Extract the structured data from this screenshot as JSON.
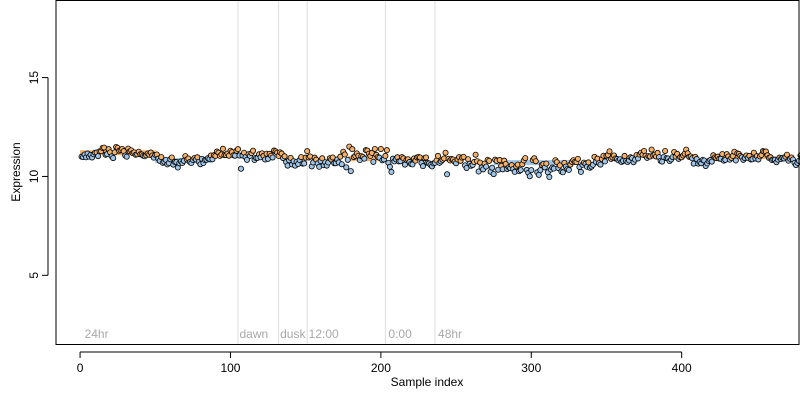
{
  "chart_data": {
    "type": "scatter",
    "xlabel": "Sample index",
    "ylabel": "Expression",
    "xlim": [
      -16,
      478
    ],
    "ylim": [
      1.5,
      18.9
    ],
    "x_ticks": [
      0,
      100,
      200,
      300,
      400
    ],
    "y_ticks": [
      5,
      10,
      15
    ],
    "grid": false,
    "n_samples": 461,
    "colors": {
      "high": "#f6b26b",
      "low": "#9fc5e8",
      "edge": "#000000",
      "vline": "#dddddd",
      "annotation": "#a8a8a8"
    },
    "annotations": [
      {
        "label": "24hr",
        "x": 3
      },
      {
        "label": "dawn",
        "x": 106
      },
      {
        "label": "dusk",
        "x": 133
      },
      {
        "label": "12:00",
        "x": 152
      },
      {
        "label": "0:00",
        "x": 205
      },
      {
        "label": "48hr",
        "x": 238
      }
    ],
    "vlines": [
      105,
      132,
      151,
      203,
      236
    ],
    "trend_segments": [
      {
        "x0": 0,
        "x1": 50,
        "y": 11.2,
        "level": "high"
      },
      {
        "x0": 50,
        "x1": 88,
        "y": 10.8,
        "level": "low"
      },
      {
        "x0": 88,
        "x1": 100,
        "y": 11.1,
        "level": "high"
      },
      {
        "x0": 178,
        "x1": 200,
        "y": 10.9,
        "level": "high"
      },
      {
        "x0": 275,
        "x1": 325,
        "y": 10.7,
        "level": "low"
      },
      {
        "x0": 420,
        "x1": 460,
        "y": 11.0,
        "level": "high"
      }
    ],
    "y_values": [
      11.0,
      10.98,
      11.11,
      10.97,
      11.16,
      11.0,
      11.09,
      10.96,
      11.12,
      11.2,
      11.21,
      11.03,
      11.27,
      11.28,
      11.44,
      11.46,
      11.1,
      11.13,
      11.38,
      11.22,
      11.02,
      10.93,
      11.22,
      11.49,
      11.44,
      11.3,
      11.34,
      11.39,
      11.28,
      11.06,
      11.0,
      11.41,
      11.27,
      11.32,
      11.18,
      11.22,
      11.1,
      11.12,
      11.25,
      11.12,
      11.11,
      11.05,
      11.02,
      11.07,
      11.16,
      11.1,
      11.21,
      11.06,
      10.95,
      11.09,
      11.11,
      10.9,
      10.79,
      10.98,
      10.69,
      10.74,
      10.84,
      10.61,
      10.68,
      10.87,
      10.96,
      10.6,
      10.74,
      10.73,
      10.45,
      10.67,
      10.76,
      10.68,
      10.79,
      11.03,
      10.86,
      10.91,
      10.73,
      10.68,
      10.84,
      10.93,
      10.86,
      10.97,
      10.74,
      10.62,
      10.89,
      10.68,
      10.83,
      10.85,
      10.93,
      10.89,
      11.06,
      10.87,
      11.07,
      11.04,
      11.26,
      11.2,
      11.04,
      11.11,
      11.4,
      11.08,
      11.08,
      11.16,
      11.05,
      11.3,
      11.23,
      11.07,
      11.05,
      11.3,
      11.38,
      11.06,
      10.39,
      11.06,
      11.2,
      10.98,
      10.84,
      11.12,
      11.04,
      11.18,
      11.3,
      10.83,
      10.94,
      10.94,
      11.12,
      10.97,
      11.17,
      11.04,
      10.86,
      11.15,
      10.89,
      11.14,
      11.05,
      10.96,
      11.31,
      11.27,
      11.2,
      11.04,
      11.22,
      11.16,
      10.93,
      11.02,
      10.73,
      10.55,
      10.82,
      10.94,
      10.61,
      10.77,
      10.55,
      10.74,
      10.63,
      10.83,
      10.98,
      10.65,
      10.66,
      10.95,
      11.28,
      10.96,
      11.01,
      10.51,
      10.71,
      10.95,
      10.85,
      10.66,
      10.49,
      10.78,
      10.92,
      10.57,
      10.72,
      10.55,
      10.71,
      10.92,
      10.86,
      10.96,
      10.67,
      10.67,
      10.86,
      10.71,
      11.0,
      10.62,
      11.25,
      11.11,
      10.46,
      10.84,
      11.51,
      10.27,
      11.38,
      10.98,
      11.04,
      11.17,
      11.05,
      10.83,
      11.03,
      10.99,
      10.9,
      11.33,
      11.31,
      11.15,
      11.04,
      11.19,
      10.74,
      11.39,
      11.09,
      10.98,
      10.95,
      11.39,
      10.82,
      10.86,
      11.04,
      11.33,
      10.69,
      10.49,
      10.23,
      10.9,
      10.76,
      10.87,
      10.97,
      10.76,
      10.77,
      10.98,
      10.92,
      10.6,
      10.84,
      10.87,
      10.73,
      10.63,
      10.61,
      10.91,
      10.8,
      10.96,
      10.99,
      10.96,
      10.68,
      10.52,
      10.93,
      10.96,
      10.69,
      10.66,
      10.58,
      10.51,
      10.66,
      10.69,
      10.81,
      11.04,
      10.69,
      10.76,
      10.84,
      10.91,
      11.2,
      10.11,
      10.89,
      10.81,
      10.88,
      10.86,
      10.75,
      10.67,
      10.86,
      10.98,
      10.79,
      10.95,
      10.99,
      10.56,
      10.43,
      10.87,
      10.64,
      10.54,
      10.58,
      10.73,
      11.1,
      10.77,
      10.25,
      10.7,
      10.45,
      10.36,
      10.65,
      10.5,
      10.84,
      10.79,
      10.24,
      10.44,
      10.12,
      10.85,
      10.79,
      10.34,
      10.83,
      10.54,
      10.36,
      10.8,
      10.63,
      10.38,
      10.46,
      10.42,
      10.57,
      10.38,
      10.23,
      10.51,
      10.6,
      10.27,
      10.32,
      10.62,
      10.81,
      10.93,
      10.33,
      10.18,
      10.01,
      10.32,
      10.83,
      10.92,
      10.77,
      10.21,
      10.08,
      10.32,
      10.58,
      10.63,
      10.46,
      10.65,
      10.21,
      9.97,
      10.35,
      10.45,
      10.4,
      10.82,
      10.72,
      10.43,
      10.56,
      10.25,
      10.21,
      10.69,
      10.5,
      10.38,
      10.33,
      10.6,
      10.74,
      10.82,
      10.74,
      10.73,
      10.89,
      10.48,
      10.23,
      10.59,
      10.7,
      10.64,
      10.49,
      10.71,
      10.44,
      10.5,
      10.59,
      10.99,
      10.74,
      10.9,
      10.67,
      10.6,
      10.88,
      11.05,
      10.76,
      11.05,
      11.09,
      11.27,
      10.89,
      10.96,
      11.06,
      10.91,
      10.88,
      10.81,
      10.87,
      10.73,
      10.79,
      11.04,
      10.79,
      10.73,
      10.81,
      10.97,
      10.93,
      10.72,
      10.85,
      11.08,
      10.91,
      11.11,
      11.2,
      11.1,
      11.29,
      11.05,
      10.94,
      11.03,
      11.01,
      11.36,
      11.06,
      11.1,
      11.01,
      11.19,
      10.98,
      10.79,
      10.75,
      10.98,
      11.29,
      10.92,
      10.91,
      10.78,
      10.86,
      10.98,
      11.24,
      11.0,
      11.14,
      10.89,
      10.98,
      10.97,
      11.06,
      11.15,
      11.36,
      11.17,
      10.99,
      11.01,
      10.92,
      10.65,
      10.99,
      10.88,
      10.65,
      10.73,
      10.67,
      10.84,
      10.81,
      10.53,
      10.66,
      10.78,
      10.83,
      10.75,
      11.07,
      10.96,
      10.93,
      11.0,
      10.9,
      10.89,
      11.13,
      10.8,
      10.84,
      11.13,
      11.01,
      10.85,
      10.94,
      11.04,
      11.25,
      10.81,
      11.17,
      11.14,
      11.04,
      10.97,
      10.84,
      10.93,
      11.06,
      10.94,
      11.04,
      10.86,
      10.87,
      11.2,
      10.91,
      11.03,
      10.86,
      11.02,
      11.09,
      11.28,
      11.25,
      11.26,
      11.07,
      10.94,
      10.97,
      10.83,
      10.86,
      10.85,
      10.72,
      10.85,
      10.95,
      10.88,
      10.94,
      10.91,
      11.0,
      11.1,
      10.8,
      10.9,
      10.96,
      10.86,
      10.68,
      10.58,
      10.69,
      10.79,
      11.06,
      10.95,
      11.21
    ]
  }
}
